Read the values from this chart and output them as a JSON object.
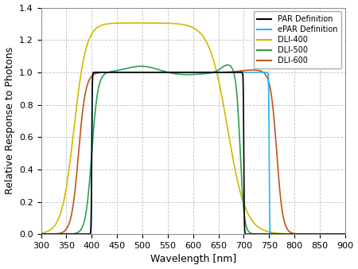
{
  "title": "",
  "xlabel": "Wavelength [nm]",
  "ylabel": "Relative Response to Photons",
  "xlim": [
    300,
    900
  ],
  "ylim": [
    0,
    1.4
  ],
  "xticks": [
    300,
    350,
    400,
    450,
    500,
    550,
    600,
    650,
    700,
    750,
    800,
    850,
    900
  ],
  "yticks": [
    0.0,
    0.2,
    0.4,
    0.6,
    0.8,
    1.0,
    1.2,
    1.4
  ],
  "colors": {
    "PAR": "#000000",
    "ePAR": "#29b6f6",
    "DLI400": "#d4b800",
    "DLI500": "#2e9e4f",
    "DLI600": "#c0541a"
  },
  "legend_labels": [
    "PAR Definition",
    "ePAR Definition",
    "DLI-400",
    "DLI-500",
    "DLI-600"
  ],
  "background_color": "#ffffff",
  "grid_color": "#c0c0c0"
}
